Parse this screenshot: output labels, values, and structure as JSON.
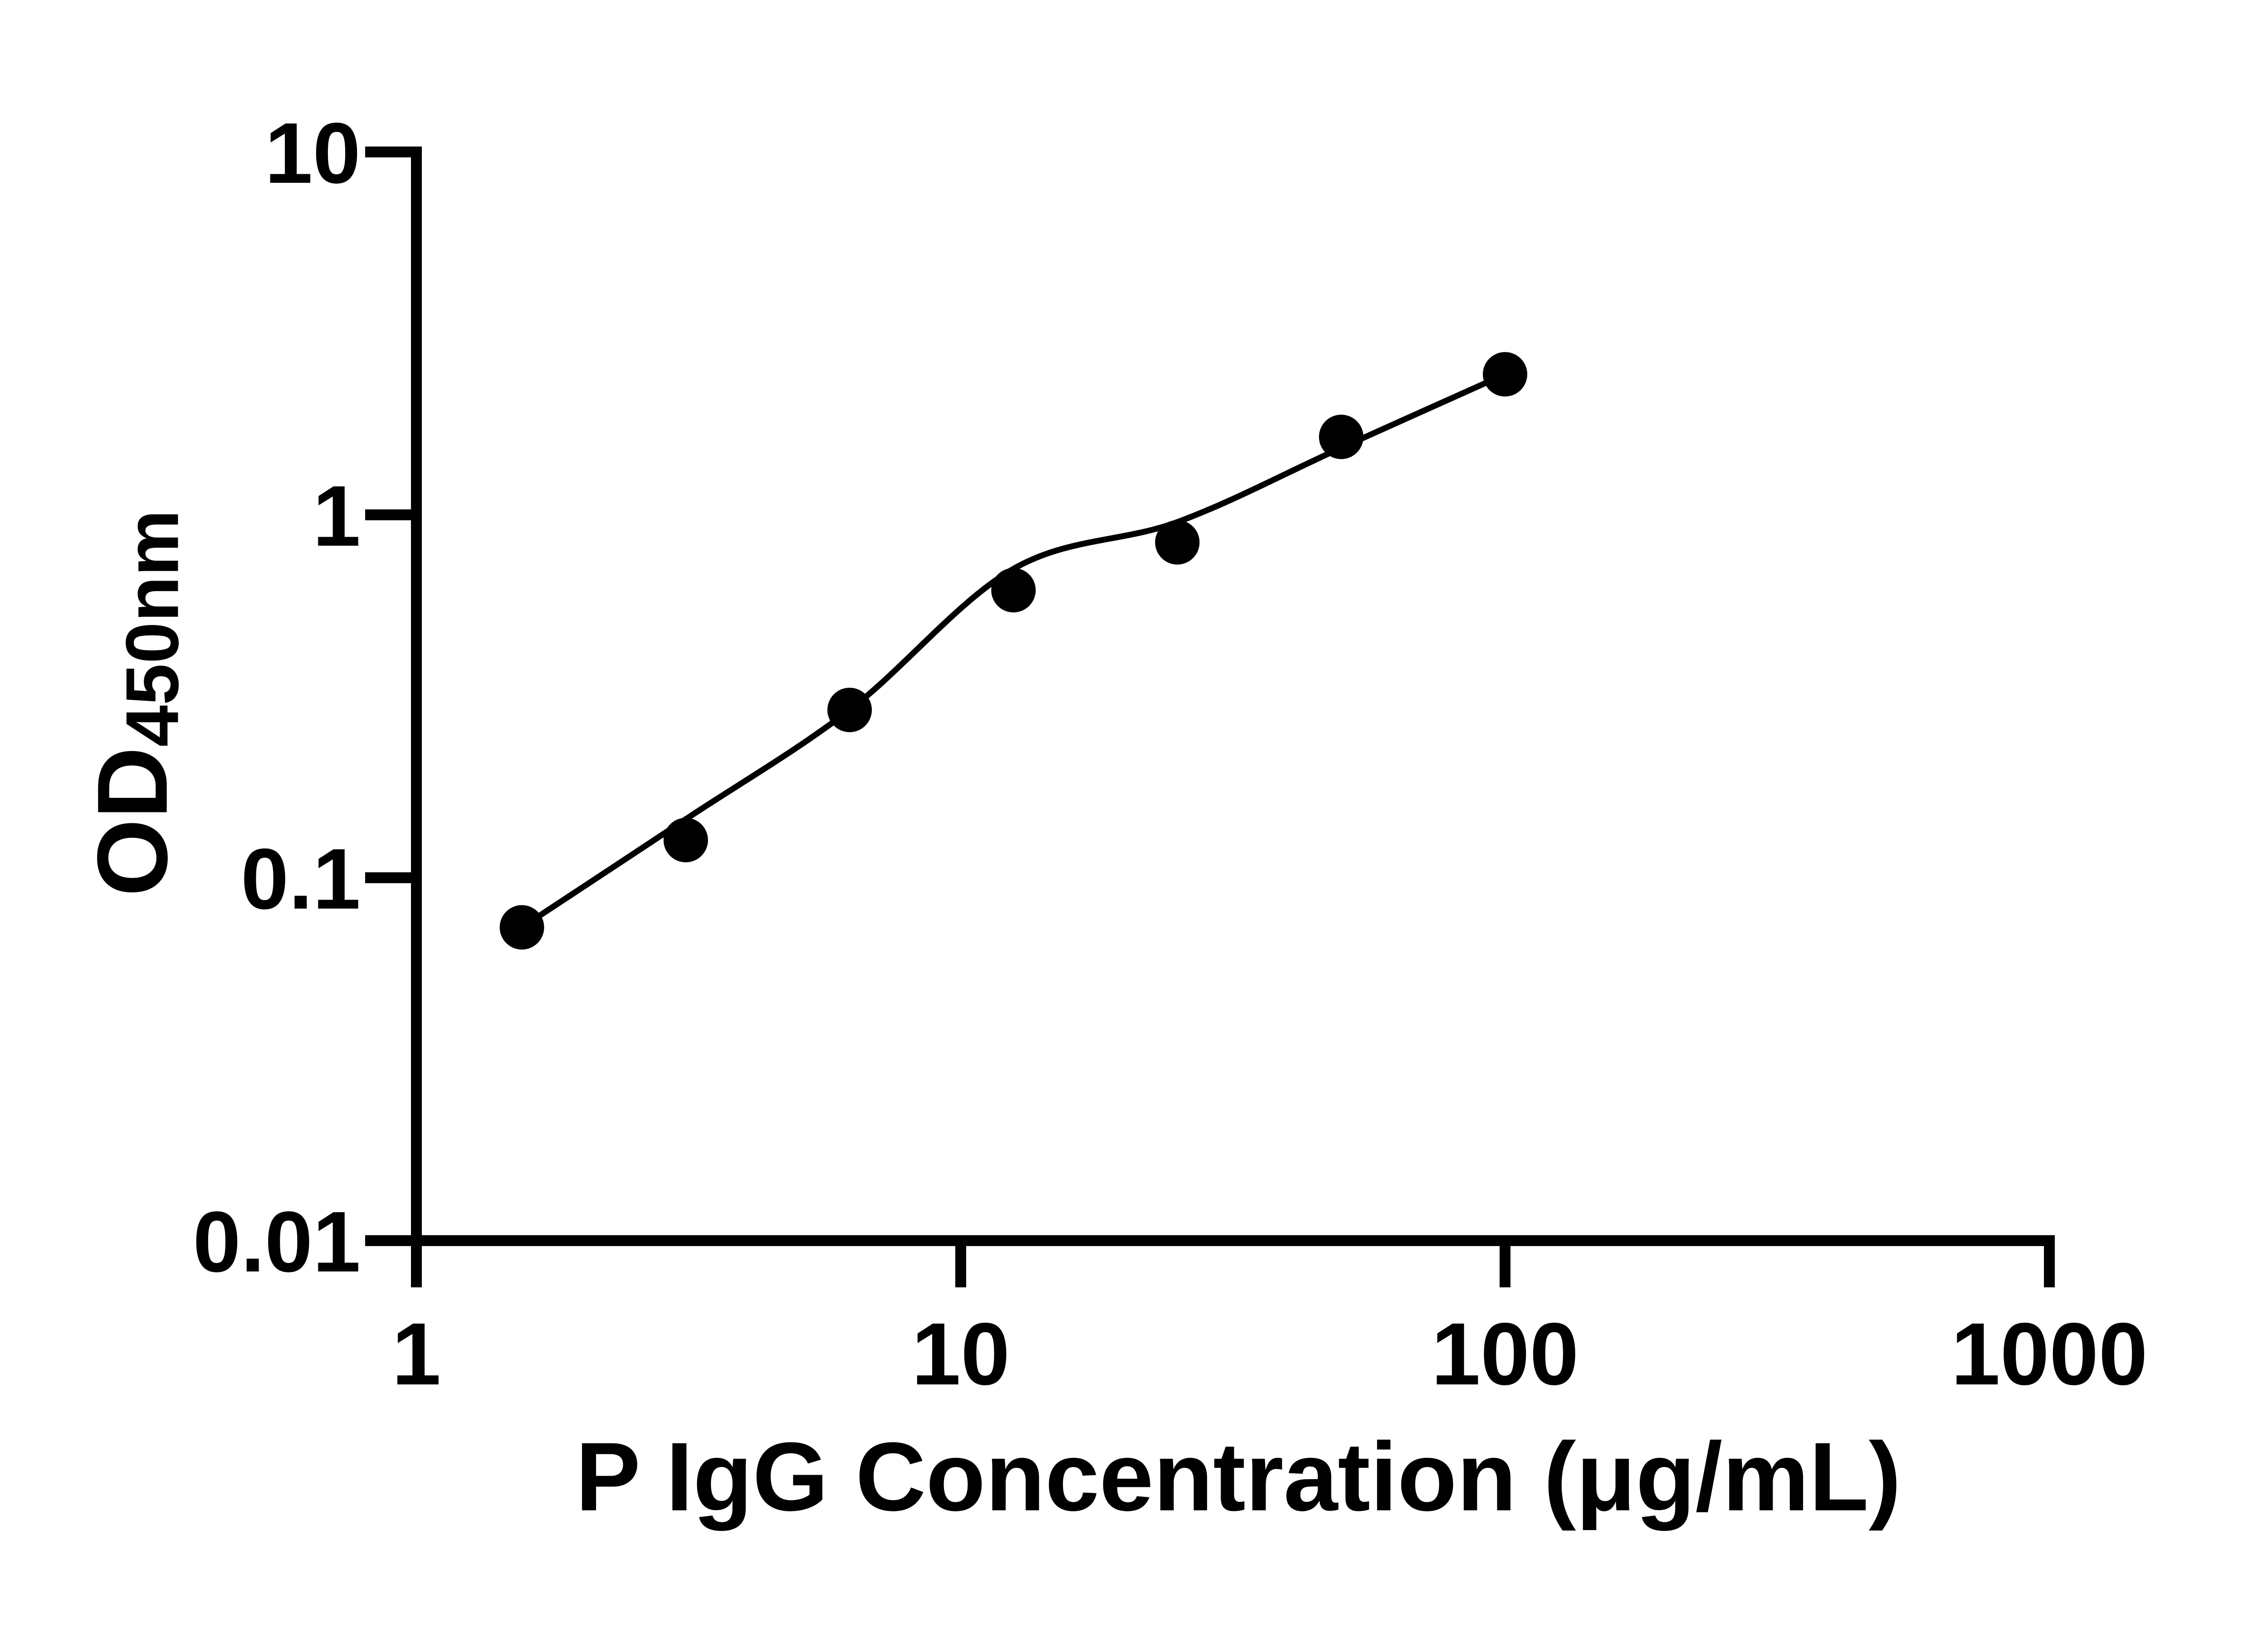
{
  "chart_data": {
    "type": "scatter",
    "title": "",
    "xlabel": "P IgG Concentration (μg/mL)",
    "ylabel_main": "OD",
    "ylabel_sub": "450nm",
    "x_scale": "log",
    "y_scale": "log",
    "xlim": [
      1,
      1000
    ],
    "ylim": [
      0.01,
      10
    ],
    "grid": false,
    "legend": false,
    "axis_color": "#000000",
    "background_color": "#ffffff",
    "x_ticks": [
      {
        "value": 1,
        "label": "1"
      },
      {
        "value": 10,
        "label": "10"
      },
      {
        "value": 100,
        "label": "100"
      },
      {
        "value": 1000,
        "label": "1000"
      }
    ],
    "y_ticks": [
      {
        "value": 10,
        "label": "10"
      },
      {
        "value": 1,
        "label": "1"
      },
      {
        "value": 0.1,
        "label": "0.1"
      },
      {
        "value": 0.01,
        "label": "0.01"
      }
    ],
    "series": [
      {
        "name": "standard-points",
        "role": "scatter",
        "marker": "filled-circle",
        "color": "#000000",
        "x": [
          1.5625,
          3.125,
          6.25,
          12.5,
          25,
          50,
          100
        ],
        "y": [
          0.073,
          0.127,
          0.29,
          0.62,
          0.84,
          1.64,
          2.44
        ]
      },
      {
        "name": "fitted-curve",
        "role": "line",
        "color": "#000000",
        "x": [
          1.5625,
          3.125,
          6.25,
          12.5,
          25,
          50,
          100
        ],
        "y": [
          0.073,
          0.145,
          0.29,
          0.71,
          0.955,
          1.53,
          2.44
        ]
      }
    ]
  }
}
